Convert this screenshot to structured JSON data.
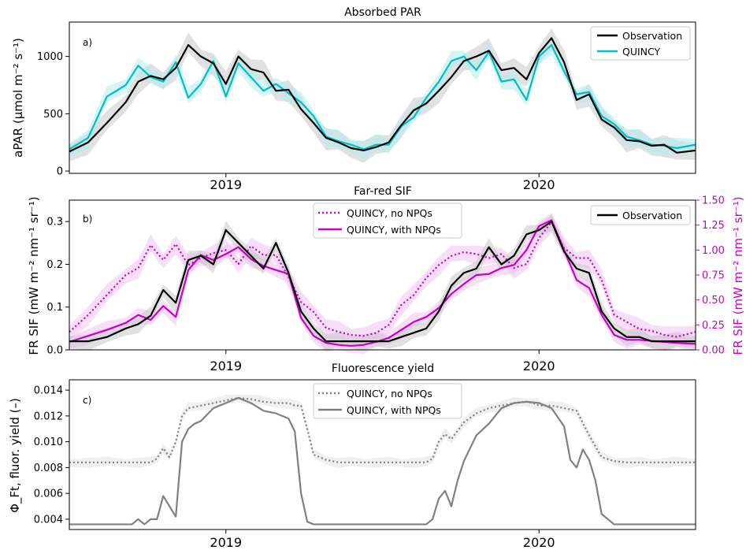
{
  "colors": {
    "observation": "#000000",
    "quincy": "#00bfc4",
    "sif_model": "#c800c8",
    "yield_model": "#808080",
    "band_obs": "#c8c8c8",
    "band_quincy": "#b3ecee",
    "band_sif": "#f2c2f2"
  },
  "chart_data": [
    {
      "type": "line",
      "panel_label": "a)",
      "title": "Absorbed PAR",
      "ylabel": "aPAR (µmol m⁻² s⁻¹)",
      "xticks": [
        "2019",
        "2020"
      ],
      "yticks": [
        "0",
        "500",
        "1000"
      ],
      "ylim": [
        -20,
        1300
      ],
      "xlim": [
        0,
        100
      ],
      "legend": {
        "placement": "top-right",
        "entries": [
          "Observation",
          "QUINCY"
        ]
      },
      "series": [
        {
          "name": "Observation",
          "style": "solid",
          "x": [
            0,
            3,
            6,
            9,
            11,
            13,
            15,
            17,
            19,
            21,
            23,
            25,
            27,
            29,
            31,
            33,
            35,
            37,
            39,
            41,
            43,
            45,
            47,
            49,
            51,
            53,
            55,
            57,
            59,
            61,
            63,
            65,
            67,
            69,
            71,
            73,
            75,
            77,
            79,
            81,
            83,
            85,
            87,
            89,
            91,
            93,
            95,
            97,
            100
          ],
          "y": [
            170,
            250,
            420,
            600,
            780,
            830,
            800,
            900,
            1100,
            1000,
            940,
            760,
            1000,
            890,
            860,
            700,
            710,
            540,
            420,
            290,
            250,
            200,
            180,
            210,
            250,
            400,
            530,
            590,
            700,
            820,
            960,
            1000,
            1050,
            880,
            900,
            800,
            1030,
            1160,
            950,
            620,
            670,
            450,
            380,
            270,
            260,
            220,
            230,
            160,
            180
          ]
        },
        {
          "name": "QUINCY",
          "style": "solid",
          "x": [
            0,
            3,
            6,
            9,
            11,
            13,
            15,
            17,
            19,
            21,
            23,
            25,
            27,
            29,
            31,
            33,
            35,
            37,
            39,
            41,
            43,
            45,
            47,
            49,
            51,
            53,
            55,
            57,
            59,
            61,
            63,
            65,
            67,
            69,
            71,
            73,
            75,
            77,
            79,
            81,
            83,
            85,
            87,
            89,
            91,
            93,
            95,
            97,
            100
          ],
          "y": [
            190,
            290,
            650,
            750,
            920,
            820,
            780,
            950,
            640,
            760,
            960,
            650,
            940,
            820,
            700,
            760,
            680,
            600,
            480,
            300,
            260,
            230,
            190,
            230,
            230,
            390,
            470,
            640,
            780,
            960,
            1000,
            880,
            1040,
            780,
            800,
            620,
            1000,
            1100,
            870,
            670,
            690,
            480,
            410,
            300,
            270,
            230,
            220,
            200,
            230
          ]
        }
      ]
    },
    {
      "type": "line",
      "panel_label": "b)",
      "title": "Far-red SIF",
      "ylabel": "FR SIF (mW m⁻² nm⁻¹ sr⁻¹)",
      "ylabel_right": "FR SIF (mW m⁻² nm⁻¹ sr⁻¹)",
      "xticks": [
        "2019",
        "2020"
      ],
      "yticks": [
        "0.0",
        "0.1",
        "0.2",
        "0.3"
      ],
      "yticks_right": [
        "0.00",
        "0.25",
        "0.50",
        "0.75",
        "1.00",
        "1.25",
        "1.50"
      ],
      "ylim": [
        0,
        0.35
      ],
      "ylim_right": [
        0,
        1.5
      ],
      "xlim": [
        0,
        100
      ],
      "legend_left": {
        "placement": "top-center",
        "entries": [
          "QUINCY, no NPQs",
          "QUINCY, with NPQs"
        ]
      },
      "legend_right": {
        "placement": "top-right",
        "entries": [
          "Observation"
        ]
      },
      "series": [
        {
          "name": "Observation",
          "axis": "left",
          "style": "solid",
          "x": [
            0,
            3,
            6,
            9,
            11,
            13,
            15,
            17,
            19,
            21,
            23,
            25,
            27,
            29,
            31,
            33,
            35,
            37,
            39,
            41,
            43,
            45,
            47,
            49,
            51,
            53,
            55,
            57,
            59,
            61,
            63,
            65,
            67,
            69,
            71,
            73,
            75,
            77,
            79,
            81,
            83,
            85,
            87,
            89,
            91,
            93,
            95,
            97,
            100
          ],
          "y": [
            0.02,
            0.02,
            0.03,
            0.05,
            0.06,
            0.08,
            0.14,
            0.11,
            0.21,
            0.22,
            0.2,
            0.28,
            0.25,
            0.22,
            0.19,
            0.25,
            0.18,
            0.09,
            0.05,
            0.02,
            0.02,
            0.02,
            0.02,
            0.02,
            0.02,
            0.03,
            0.04,
            0.05,
            0.09,
            0.15,
            0.18,
            0.19,
            0.24,
            0.2,
            0.22,
            0.27,
            0.28,
            0.3,
            0.23,
            0.19,
            0.18,
            0.09,
            0.05,
            0.03,
            0.03,
            0.02,
            0.02,
            0.02,
            0.02
          ]
        },
        {
          "name": "QUINCY, no NPQs",
          "axis": "right",
          "style": "dotted",
          "x": [
            0,
            3,
            6,
            9,
            11,
            13,
            15,
            17,
            19,
            21,
            23,
            25,
            27,
            29,
            31,
            33,
            35,
            37,
            39,
            41,
            43,
            45,
            47,
            49,
            51,
            53,
            55,
            57,
            59,
            61,
            63,
            65,
            67,
            69,
            71,
            73,
            75,
            77,
            79,
            81,
            83,
            85,
            87,
            89,
            91,
            93,
            95,
            97,
            100
          ],
          "y": [
            0.18,
            0.35,
            0.55,
            0.75,
            0.82,
            1.05,
            0.9,
            1.06,
            0.85,
            0.92,
            0.97,
            1.0,
            0.86,
            1.04,
            0.95,
            0.95,
            0.73,
            0.48,
            0.38,
            0.22,
            0.18,
            0.15,
            0.14,
            0.17,
            0.25,
            0.45,
            0.55,
            0.72,
            0.85,
            0.94,
            0.98,
            0.96,
            0.92,
            0.96,
            0.82,
            0.86,
            1.12,
            1.28,
            1.02,
            0.92,
            0.92,
            0.7,
            0.35,
            0.28,
            0.21,
            0.19,
            0.15,
            0.13,
            0.18
          ]
        },
        {
          "name": "QUINCY, with NPQs",
          "axis": "right",
          "style": "solid",
          "x": [
            0,
            3,
            6,
            9,
            11,
            13,
            15,
            17,
            19,
            21,
            23,
            25,
            27,
            29,
            31,
            33,
            35,
            37,
            39,
            41,
            43,
            45,
            47,
            49,
            51,
            53,
            55,
            57,
            59,
            61,
            63,
            65,
            67,
            69,
            71,
            73,
            75,
            77,
            79,
            81,
            83,
            85,
            87,
            89,
            91,
            93,
            95,
            97,
            100
          ],
          "y": [
            0.08,
            0.14,
            0.2,
            0.27,
            0.35,
            0.3,
            0.44,
            0.33,
            0.8,
            0.95,
            0.9,
            0.96,
            1.03,
            0.91,
            0.84,
            0.8,
            0.76,
            0.32,
            0.14,
            0.07,
            0.05,
            0.04,
            0.05,
            0.08,
            0.12,
            0.2,
            0.28,
            0.33,
            0.42,
            0.56,
            0.66,
            0.75,
            0.76,
            0.82,
            0.85,
            1.0,
            1.24,
            1.3,
            1.0,
            0.7,
            0.62,
            0.35,
            0.15,
            0.1,
            0.1,
            0.09,
            0.08,
            0.07,
            0.06
          ]
        }
      ]
    },
    {
      "type": "line",
      "panel_label": "c)",
      "title": "Fluorescence yield",
      "ylabel": "Φ_Ft, fluor. yield (–)",
      "xticks": [
        "2019",
        "2020"
      ],
      "yticks": [
        "0.004",
        "0.006",
        "0.008",
        "0.010",
        "0.012",
        "0.014"
      ],
      "ylim": [
        0.0032,
        0.0148
      ],
      "xlim": [
        0,
        100
      ],
      "legend": {
        "placement": "top-center",
        "entries": [
          "QUINCY, no NPQs",
          "QUINCY, with NPQs"
        ]
      },
      "series": [
        {
          "name": "QUINCY, no NPQs",
          "style": "dotted",
          "x": [
            0,
            3,
            6,
            9,
            11,
            13,
            14,
            15,
            16,
            17,
            18,
            19,
            21,
            23,
            25,
            27,
            29,
            31,
            33,
            35,
            36,
            37,
            38,
            39,
            41,
            43,
            45,
            47,
            49,
            51,
            53,
            55,
            57,
            58,
            59,
            60,
            61,
            63,
            65,
            67,
            69,
            71,
            73,
            74,
            75,
            76,
            77,
            79,
            81,
            83,
            85,
            87,
            89,
            91,
            93,
            95,
            97,
            100
          ],
          "y": [
            0.0084,
            0.0084,
            0.0084,
            0.0084,
            0.0084,
            0.0084,
            0.0087,
            0.0095,
            0.0088,
            0.01,
            0.012,
            0.0126,
            0.0128,
            0.013,
            0.0132,
            0.0134,
            0.0133,
            0.0131,
            0.013,
            0.013,
            0.0128,
            0.0128,
            0.011,
            0.009,
            0.0086,
            0.0084,
            0.0084,
            0.0084,
            0.0084,
            0.0084,
            0.0084,
            0.0084,
            0.0084,
            0.0087,
            0.01,
            0.0106,
            0.0102,
            0.0115,
            0.0122,
            0.0126,
            0.0128,
            0.013,
            0.0131,
            0.013,
            0.0128,
            0.0128,
            0.0128,
            0.0126,
            0.0124,
            0.0105,
            0.0088,
            0.0085,
            0.0084,
            0.0084,
            0.0084,
            0.0084,
            0.0084,
            0.0084
          ]
        },
        {
          "name": "QUINCY, with NPQs",
          "style": "solid",
          "x": [
            0,
            3,
            6,
            9,
            10,
            11,
            12,
            13,
            14,
            15,
            16,
            17,
            18,
            19,
            20,
            21,
            23,
            25,
            27,
            29,
            31,
            33,
            35,
            36,
            37,
            38,
            39,
            41,
            43,
            45,
            47,
            49,
            51,
            53,
            55,
            57,
            58,
            59,
            60,
            61,
            62,
            63,
            65,
            67,
            69,
            71,
            73,
            75,
            77,
            79,
            80,
            81,
            82,
            83,
            84,
            85,
            87,
            89,
            91,
            93,
            95,
            97,
            100
          ],
          "y": [
            0.0036,
            0.0036,
            0.0036,
            0.0036,
            0.0036,
            0.004,
            0.0036,
            0.004,
            0.004,
            0.0058,
            0.005,
            0.0042,
            0.01,
            0.011,
            0.0114,
            0.0116,
            0.0126,
            0.013,
            0.0134,
            0.013,
            0.0124,
            0.0122,
            0.0118,
            0.0108,
            0.006,
            0.0038,
            0.0036,
            0.0036,
            0.0036,
            0.0036,
            0.0036,
            0.0036,
            0.0036,
            0.0036,
            0.0036,
            0.0036,
            0.004,
            0.0056,
            0.0062,
            0.005,
            0.007,
            0.0085,
            0.0105,
            0.0114,
            0.0126,
            0.013,
            0.0131,
            0.013,
            0.0126,
            0.0112,
            0.0086,
            0.008,
            0.0094,
            0.0086,
            0.007,
            0.0044,
            0.0036,
            0.0036,
            0.0036,
            0.0036,
            0.0036,
            0.0036,
            0.0036
          ]
        }
      ]
    }
  ]
}
